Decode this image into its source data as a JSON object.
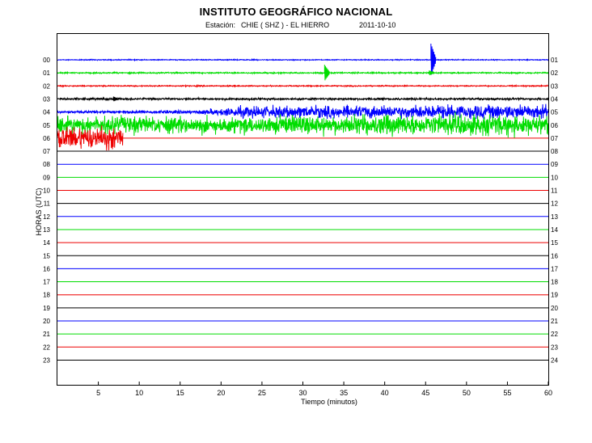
{
  "header": {
    "title": "INSTITUTO GEOGRÁFICO NACIONAL",
    "station_label": "Estación:",
    "station_value": "CHIE ( SHZ ) - EL HIERRO",
    "date": "2011-10-10"
  },
  "colors": {
    "blue": "#0000ff",
    "green": "#00dd00",
    "red": "#ee0000",
    "black": "#000000"
  },
  "chart_data": {
    "type": "line",
    "title": "INSTITUTO GEOGRÁFICO NACIONAL",
    "xlabel": "Tiempo (minutos)",
    "ylabel": "HORAS (UTC)",
    "xlim": [
      0,
      60
    ],
    "x_ticks": [
      5,
      10,
      15,
      20,
      25,
      30,
      35,
      40,
      45,
      50,
      55,
      60
    ],
    "left_labels": [
      "00",
      "01",
      "02",
      "03",
      "04",
      "05",
      "06",
      "07",
      "08",
      "09",
      "10",
      "11",
      "12",
      "13",
      "14",
      "15",
      "16",
      "17",
      "18",
      "19",
      "20",
      "21",
      "22",
      "23"
    ],
    "right_labels": [
      "01",
      "02",
      "03",
      "04",
      "05",
      "06",
      "07",
      "08",
      "09",
      "10",
      "11",
      "12",
      "13",
      "14",
      "15",
      "16",
      "17",
      "18",
      "19",
      "20",
      "21",
      "22",
      "23",
      "24"
    ],
    "trace_colors": [
      "blue",
      "green",
      "red",
      "black",
      "blue",
      "green",
      "red",
      "black",
      "blue",
      "green",
      "red",
      "black",
      "blue",
      "green",
      "red",
      "black",
      "blue",
      "green",
      "red",
      "black",
      "blue",
      "green",
      "red",
      "black"
    ],
    "series": [
      {
        "hour": "00",
        "end_minute": 60,
        "amplitude": [
          [
            0,
            0.4
          ],
          [
            60,
            0.4
          ]
        ],
        "spikes": [
          {
            "minute": 45.8,
            "amplitude": 20
          }
        ]
      },
      {
        "hour": "01",
        "end_minute": 60,
        "amplitude": [
          [
            0,
            0.6
          ],
          [
            60,
            0.6
          ]
        ],
        "spikes": [
          {
            "minute": 32.8,
            "amplitude": 10
          },
          {
            "minute": 45.6,
            "amplitude": 3
          }
        ]
      },
      {
        "hour": "02",
        "end_minute": 60,
        "amplitude": [
          [
            0,
            0.5
          ],
          [
            60,
            0.5
          ]
        ],
        "spikes": []
      },
      {
        "hour": "03",
        "end_minute": 60,
        "amplitude": [
          [
            0,
            0.9
          ],
          [
            60,
            0.9
          ]
        ],
        "spikes": [
          {
            "minute": 7,
            "amplitude": 3
          }
        ]
      },
      {
        "hour": "04",
        "end_minute": 60,
        "amplitude": [
          [
            0,
            1
          ],
          [
            17,
            1.5
          ],
          [
            23,
            5
          ],
          [
            60,
            6.5
          ]
        ],
        "spikes": []
      },
      {
        "hour": "05",
        "end_minute": 60,
        "amplitude": [
          [
            0,
            8
          ],
          [
            20,
            7
          ],
          [
            40,
            9
          ],
          [
            60,
            9
          ]
        ],
        "spikes": []
      },
      {
        "hour": "06",
        "end_minute": 8,
        "amplitude": [
          [
            0,
            10
          ],
          [
            8,
            10
          ]
        ],
        "spikes": []
      },
      {
        "hour": "07",
        "end_minute": 0
      },
      {
        "hour": "08",
        "end_minute": 0
      },
      {
        "hour": "09",
        "end_minute": 0
      },
      {
        "hour": "10",
        "end_minute": 0
      },
      {
        "hour": "11",
        "end_minute": 0
      },
      {
        "hour": "12",
        "end_minute": 0
      },
      {
        "hour": "13",
        "end_minute": 0
      },
      {
        "hour": "14",
        "end_minute": 0
      },
      {
        "hour": "15",
        "end_minute": 0
      },
      {
        "hour": "16",
        "end_minute": 0
      },
      {
        "hour": "17",
        "end_minute": 0
      },
      {
        "hour": "18",
        "end_minute": 0
      },
      {
        "hour": "19",
        "end_minute": 0
      },
      {
        "hour": "20",
        "end_minute": 0
      },
      {
        "hour": "21",
        "end_minute": 0
      },
      {
        "hour": "22",
        "end_minute": 0
      },
      {
        "hour": "23",
        "end_minute": 0
      }
    ]
  }
}
